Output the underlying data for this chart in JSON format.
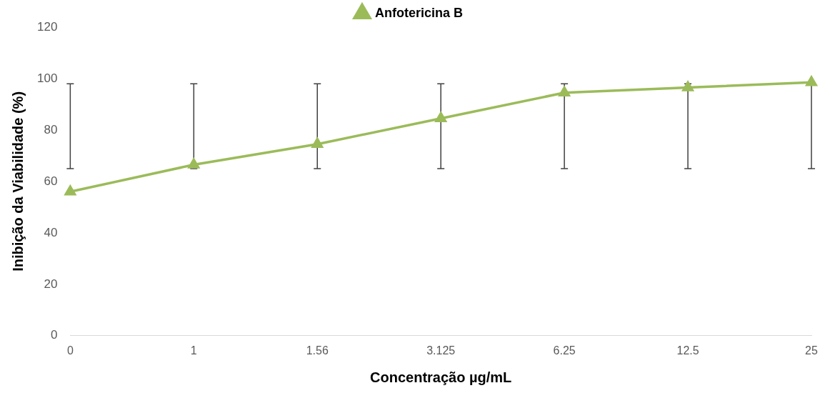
{
  "chart_data": {
    "type": "line",
    "xlabel": "Concentração µg/mL",
    "ylabel": "Inibição da Viabilidade (%)",
    "categories": [
      "0",
      "1",
      "1.56",
      "3.125",
      "6.25",
      "12.5",
      "25"
    ],
    "series": [
      {
        "name": "Anfotericina B",
        "color": "#9bbb59",
        "values": [
          56,
          66.5,
          74.5,
          84.5,
          94.5,
          96.5,
          98.5
        ],
        "errors": [
          [
            65,
            98
          ],
          [
            65,
            98
          ],
          [
            65,
            98
          ],
          [
            65,
            98
          ],
          [
            65,
            98
          ],
          [
            65,
            98
          ],
          [
            65,
            98
          ]
        ]
      }
    ],
    "ylim": [
      0,
      120
    ],
    "yticks": [
      0,
      20,
      40,
      60,
      80,
      100,
      120
    ],
    "grid": false,
    "legend": "top",
    "marker": "triangle",
    "line_style": "solid"
  }
}
